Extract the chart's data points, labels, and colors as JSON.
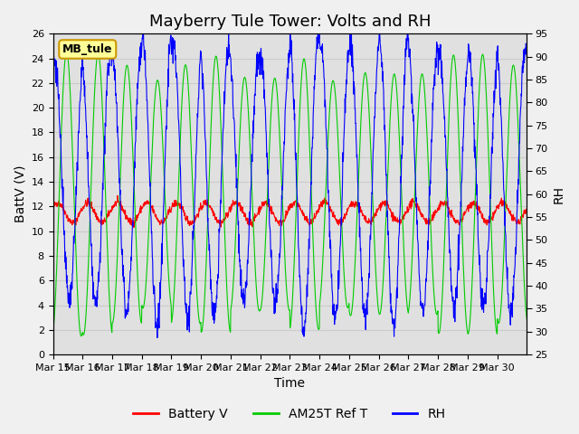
{
  "title": "Mayberry Tule Tower: Volts and RH",
  "xlabel": "Time",
  "ylabel_left": "BattV (V)",
  "ylabel_right": "RH",
  "ylim_left": [
    0,
    26
  ],
  "ylim_right": [
    25,
    95
  ],
  "yticks_left": [
    0,
    2,
    4,
    6,
    8,
    10,
    12,
    14,
    16,
    18,
    20,
    22,
    24,
    26
  ],
  "yticks_right": [
    25,
    30,
    35,
    40,
    45,
    50,
    55,
    60,
    65,
    70,
    75,
    80,
    85,
    90,
    95
  ],
  "xtick_labels": [
    "Mar 15",
    "Mar 16",
    "Mar 17",
    "Mar 18",
    "Mar 19",
    "Mar 20",
    "Mar 21",
    "Mar 22",
    "Mar 23",
    "Mar 24",
    "Mar 25",
    "Mar 26",
    "Mar 27",
    "Mar 28",
    "Mar 29",
    "Mar 30"
  ],
  "legend_labels": [
    "Battery V",
    "AM25T Ref T",
    "RH"
  ],
  "legend_colors": [
    "#ff0000",
    "#00cc00",
    "#0000ff"
  ],
  "battery_color": "#ff0000",
  "am25t_color": "#00cc00",
  "rh_color": "#0000ff",
  "grid_color": "#cccccc",
  "bg_color": "#e0e0e0",
  "fig_bg_color": "#f0f0f0",
  "watermark_text": "MB_tule",
  "watermark_bg": "#ffff99",
  "watermark_border": "#cc9900",
  "title_fontsize": 13,
  "axis_fontsize": 10,
  "tick_fontsize": 8,
  "legend_fontsize": 10
}
